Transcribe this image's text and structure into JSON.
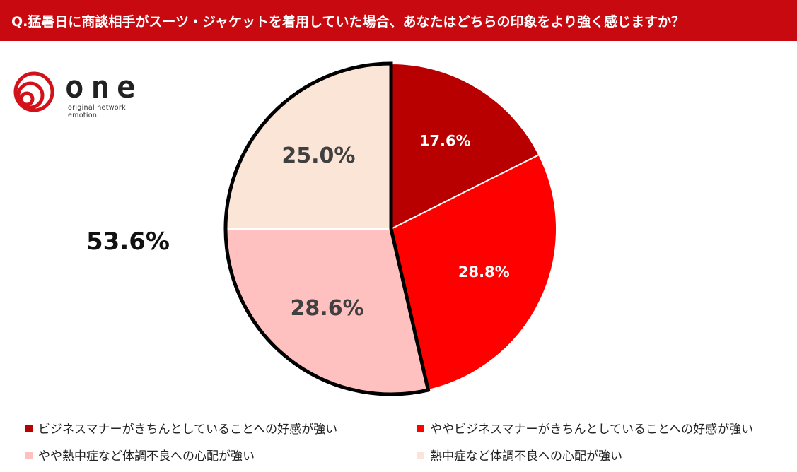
{
  "header": {
    "title": "Q.猛暑日に商談相手がスーツ・ジャケットを着用していた場合、あなたはどちらの印象をより強く感じますか？"
  },
  "logo": {
    "word": "one",
    "tagline": "original network emotion"
  },
  "total_label": "53.6%",
  "colors": {
    "header": "#c8090f",
    "slice1": "#b90000",
    "slice2": "#ff0000",
    "slice3": "#ffc0c0",
    "slice4": "#fbe5d6"
  },
  "chart_data": {
    "type": "pie",
    "title": "",
    "slices": [
      {
        "name": "ビジネスマナーがきちんとしていることへの好感が強い",
        "value": 17.6,
        "label": "17.6%",
        "color": "#b90000",
        "label_color": "#ffffff"
      },
      {
        "name": "ややビジネスマナーがきちんとしていることへの好感が強い",
        "value": 28.8,
        "label": "28.8%",
        "color": "#ff0000",
        "label_color": "#ffffff"
      },
      {
        "name": "やや熱中症など体調不良への心配が強い",
        "value": 28.6,
        "label": "28.6%",
        "color": "#ffc0c0",
        "label_color": "#404040"
      },
      {
        "name": "熱中症など体調不良への心配が強い",
        "value": 25.0,
        "label": "25.0%",
        "color": "#fbe5d6",
        "label_color": "#404040"
      }
    ],
    "combined_total": {
      "label": "53.6%",
      "slices": [
        3,
        4
      ]
    },
    "legend_position": "bottom"
  }
}
